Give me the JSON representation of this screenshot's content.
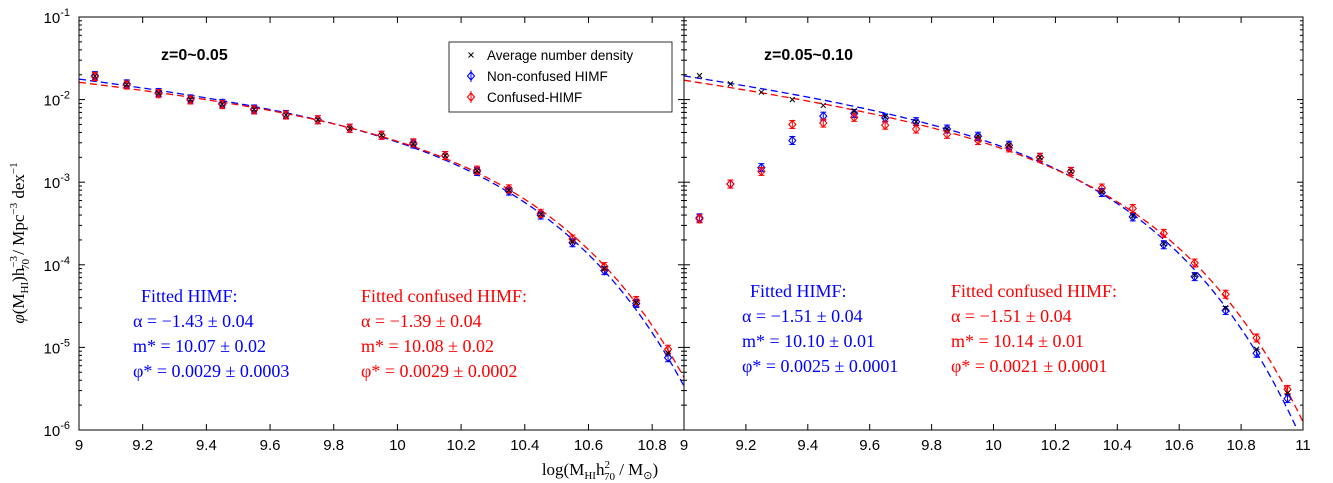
{
  "chart_data": {
    "type": "scatter",
    "y_scale": "log",
    "ylim": [
      1e-06,
      0.1
    ],
    "x_tick_labels_left": [
      "9",
      "9.2",
      "9.4",
      "9.6",
      "9.8",
      "10",
      "10.2",
      "10.4",
      "10.6",
      "10.8"
    ],
    "x_tick_labels_right": [
      "9",
      "9.2",
      "9.4",
      "9.6",
      "9.8",
      "10",
      "10.2",
      "10.4",
      "10.6",
      "10.8",
      "11"
    ],
    "y_tick_labels": [
      {
        "base": "10",
        "exp": "-1"
      },
      {
        "base": "10",
        "exp": "-2"
      },
      {
        "base": "10",
        "exp": "-3"
      },
      {
        "base": "10",
        "exp": "-4"
      },
      {
        "base": "10",
        "exp": "-5"
      },
      {
        "base": "10",
        "exp": "-6"
      }
    ],
    "xlabel": "log(M_HI h^2_70 / M_⊙)",
    "ylabel": "φ(M_HI) h^-3_70 / Mpc^-3 dex^-1",
    "legend": {
      "position": "top-right of left panel",
      "entries": [
        {
          "marker": "x",
          "color": "#000000",
          "label": "Average number density"
        },
        {
          "marker": "diamond",
          "color": "#0000ff",
          "label": "Non-confused HIMF"
        },
        {
          "marker": "diamond",
          "color": "#ff0000",
          "label": "Confused-HIMF"
        }
      ]
    },
    "panels": [
      {
        "title": "z=0~0.05",
        "xlim": [
          9,
          10.9
        ],
        "series": [
          {
            "name": "Non-confused HIMF",
            "color": "#0000ff",
            "marker": "diamond",
            "x": [
              9.05,
              9.15,
              9.25,
              9.35,
              9.45,
              9.55,
              9.65,
              9.75,
              9.85,
              9.95,
              10.05,
              10.15,
              10.25,
              10.35,
              10.45,
              10.55,
              10.65,
              10.75,
              10.85
            ],
            "y": [
              0.0195,
              0.0155,
              0.0122,
              0.0102,
              0.009,
              0.0077,
              0.0066,
              0.0057,
              0.0045,
              0.0037,
              0.0029,
              0.0021,
              0.00135,
              0.00078,
              0.0004,
              0.000185,
              8.5e-05,
              3.4e-05,
              7.5e-06
            ]
          },
          {
            "name": "Confused-HIMF",
            "color": "#ff0000",
            "marker": "diamond",
            "x": [
              9.05,
              9.15,
              9.25,
              9.35,
              9.45,
              9.55,
              9.65,
              9.75,
              9.85,
              9.95,
              10.05,
              10.15,
              10.25,
              10.35,
              10.45,
              10.55,
              10.65,
              10.75,
              10.85
            ],
            "y": [
              0.019,
              0.015,
              0.0118,
              0.0099,
              0.0087,
              0.0075,
              0.0065,
              0.0057,
              0.0045,
              0.0037,
              0.003,
              0.0021,
              0.0014,
              0.00083,
              0.00042,
              0.000205,
              9.5e-05,
              3.7e-05,
              9.5e-06
            ]
          },
          {
            "name": "Average number density",
            "color": "#000000",
            "marker": "x",
            "x": [
              9.05,
              9.15,
              9.25,
              9.35,
              9.45,
              9.55,
              9.65,
              9.75,
              9.85,
              9.95,
              10.05,
              10.15,
              10.25,
              10.35,
              10.45,
              10.55,
              10.65,
              10.75,
              10.85
            ],
            "y": [
              0.0192,
              0.0152,
              0.012,
              0.01,
              0.0088,
              0.0076,
              0.0065,
              0.0057,
              0.0045,
              0.0037,
              0.0029,
              0.0021,
              0.00137,
              0.0008,
              0.00041,
              0.00019,
              9e-05,
              3.5e-05,
              8.5e-06
            ]
          }
        ],
        "fits": [
          {
            "label": "Fitted HIMF:",
            "color": "#0000ff",
            "alpha": -1.43,
            "mstar": 10.07,
            "phistar": 0.0029,
            "lines": [
              "α = −1.43 ± 0.04",
              "m* = 10.07 ± 0.02",
              "φ* = 0.0029 ± 0.0003"
            ]
          },
          {
            "label": "Fitted confused HIMF:",
            "color": "#ff0000",
            "alpha": -1.39,
            "mstar": 10.08,
            "phistar": 0.0029,
            "lines": [
              "α = −1.39 ± 0.04",
              "m* = 10.08 ± 0.02",
              "φ* = 0.0029 ± 0.0002"
            ]
          }
        ]
      },
      {
        "title": "z=0.05~0.10",
        "xlim": [
          9,
          11
        ],
        "series": [
          {
            "name": "Non-confused HIMF",
            "color": "#0000ff",
            "marker": "diamond",
            "x": [
              9.05,
              9.15,
              9.25,
              9.35,
              9.45,
              9.55,
              9.65,
              9.75,
              9.85,
              9.95,
              10.05,
              10.15,
              10.25,
              10.35,
              10.45,
              10.55,
              10.65,
              10.75,
              10.85,
              10.95
            ],
            "y": [
              0.00037,
              0.00095,
              0.0015,
              0.0032,
              0.0063,
              0.0068,
              0.006,
              0.0054,
              0.0044,
              0.0036,
              0.0028,
              0.002,
              0.00135,
              0.00075,
              0.00038,
              0.000175,
              7.2e-05,
              2.8e-05,
              8.5e-06,
              2.4e-06
            ]
          },
          {
            "name": "Confused-HIMF",
            "color": "#ff0000",
            "marker": "diamond",
            "x": [
              9.05,
              9.15,
              9.25,
              9.35,
              9.45,
              9.55,
              9.65,
              9.75,
              9.85,
              9.95,
              10.05,
              10.15,
              10.25,
              10.35,
              10.45,
              10.55,
              10.65,
              10.75,
              10.85,
              10.95
            ],
            "y": [
              0.00036,
              0.00095,
              0.00135,
              0.005,
              0.0052,
              0.0061,
              0.0049,
              0.0044,
              0.0038,
              0.0032,
              0.0026,
              0.002,
              0.00135,
              0.00085,
              0.00048,
              0.00024,
              0.000105,
              4.4e-05,
              1.3e-05,
              3.1e-06
            ]
          },
          {
            "name": "Average number density",
            "color": "#000000",
            "marker": "x",
            "x": [
              9.05,
              9.15,
              9.25,
              9.35,
              9.45,
              9.55,
              9.65,
              9.75,
              9.85,
              9.95,
              10.05,
              10.15,
              10.25,
              10.35,
              10.45,
              10.55,
              10.65,
              10.75,
              10.85,
              10.95
            ],
            "y": [
              0.0195,
              0.0155,
              0.0123,
              0.01,
              0.0085,
              0.0073,
              0.0062,
              0.0054,
              0.0044,
              0.0036,
              0.0028,
              0.002,
              0.00135,
              0.00076,
              0.00039,
              0.00018,
              7.5e-05,
              3e-05,
              9.5e-06,
              2.8e-06
            ]
          }
        ],
        "fits": [
          {
            "label": "Fitted HIMF:",
            "color": "#0000ff",
            "alpha": -1.51,
            "mstar": 10.1,
            "phistar": 0.0025,
            "lines": [
              "α = −1.51 ± 0.04",
              "m* = 10.10 ± 0.01",
              "φ* = 0.0025 ± 0.0001"
            ]
          },
          {
            "label": "Fitted confused HIMF:",
            "color": "#ff0000",
            "alpha": -1.51,
            "mstar": 10.14,
            "phistar": 0.0021,
            "lines": [
              "α = −1.51 ± 0.04",
              "m* = 10.14 ± 0.01",
              "φ* = 0.0021 ± 0.0001"
            ]
          }
        ]
      }
    ]
  }
}
